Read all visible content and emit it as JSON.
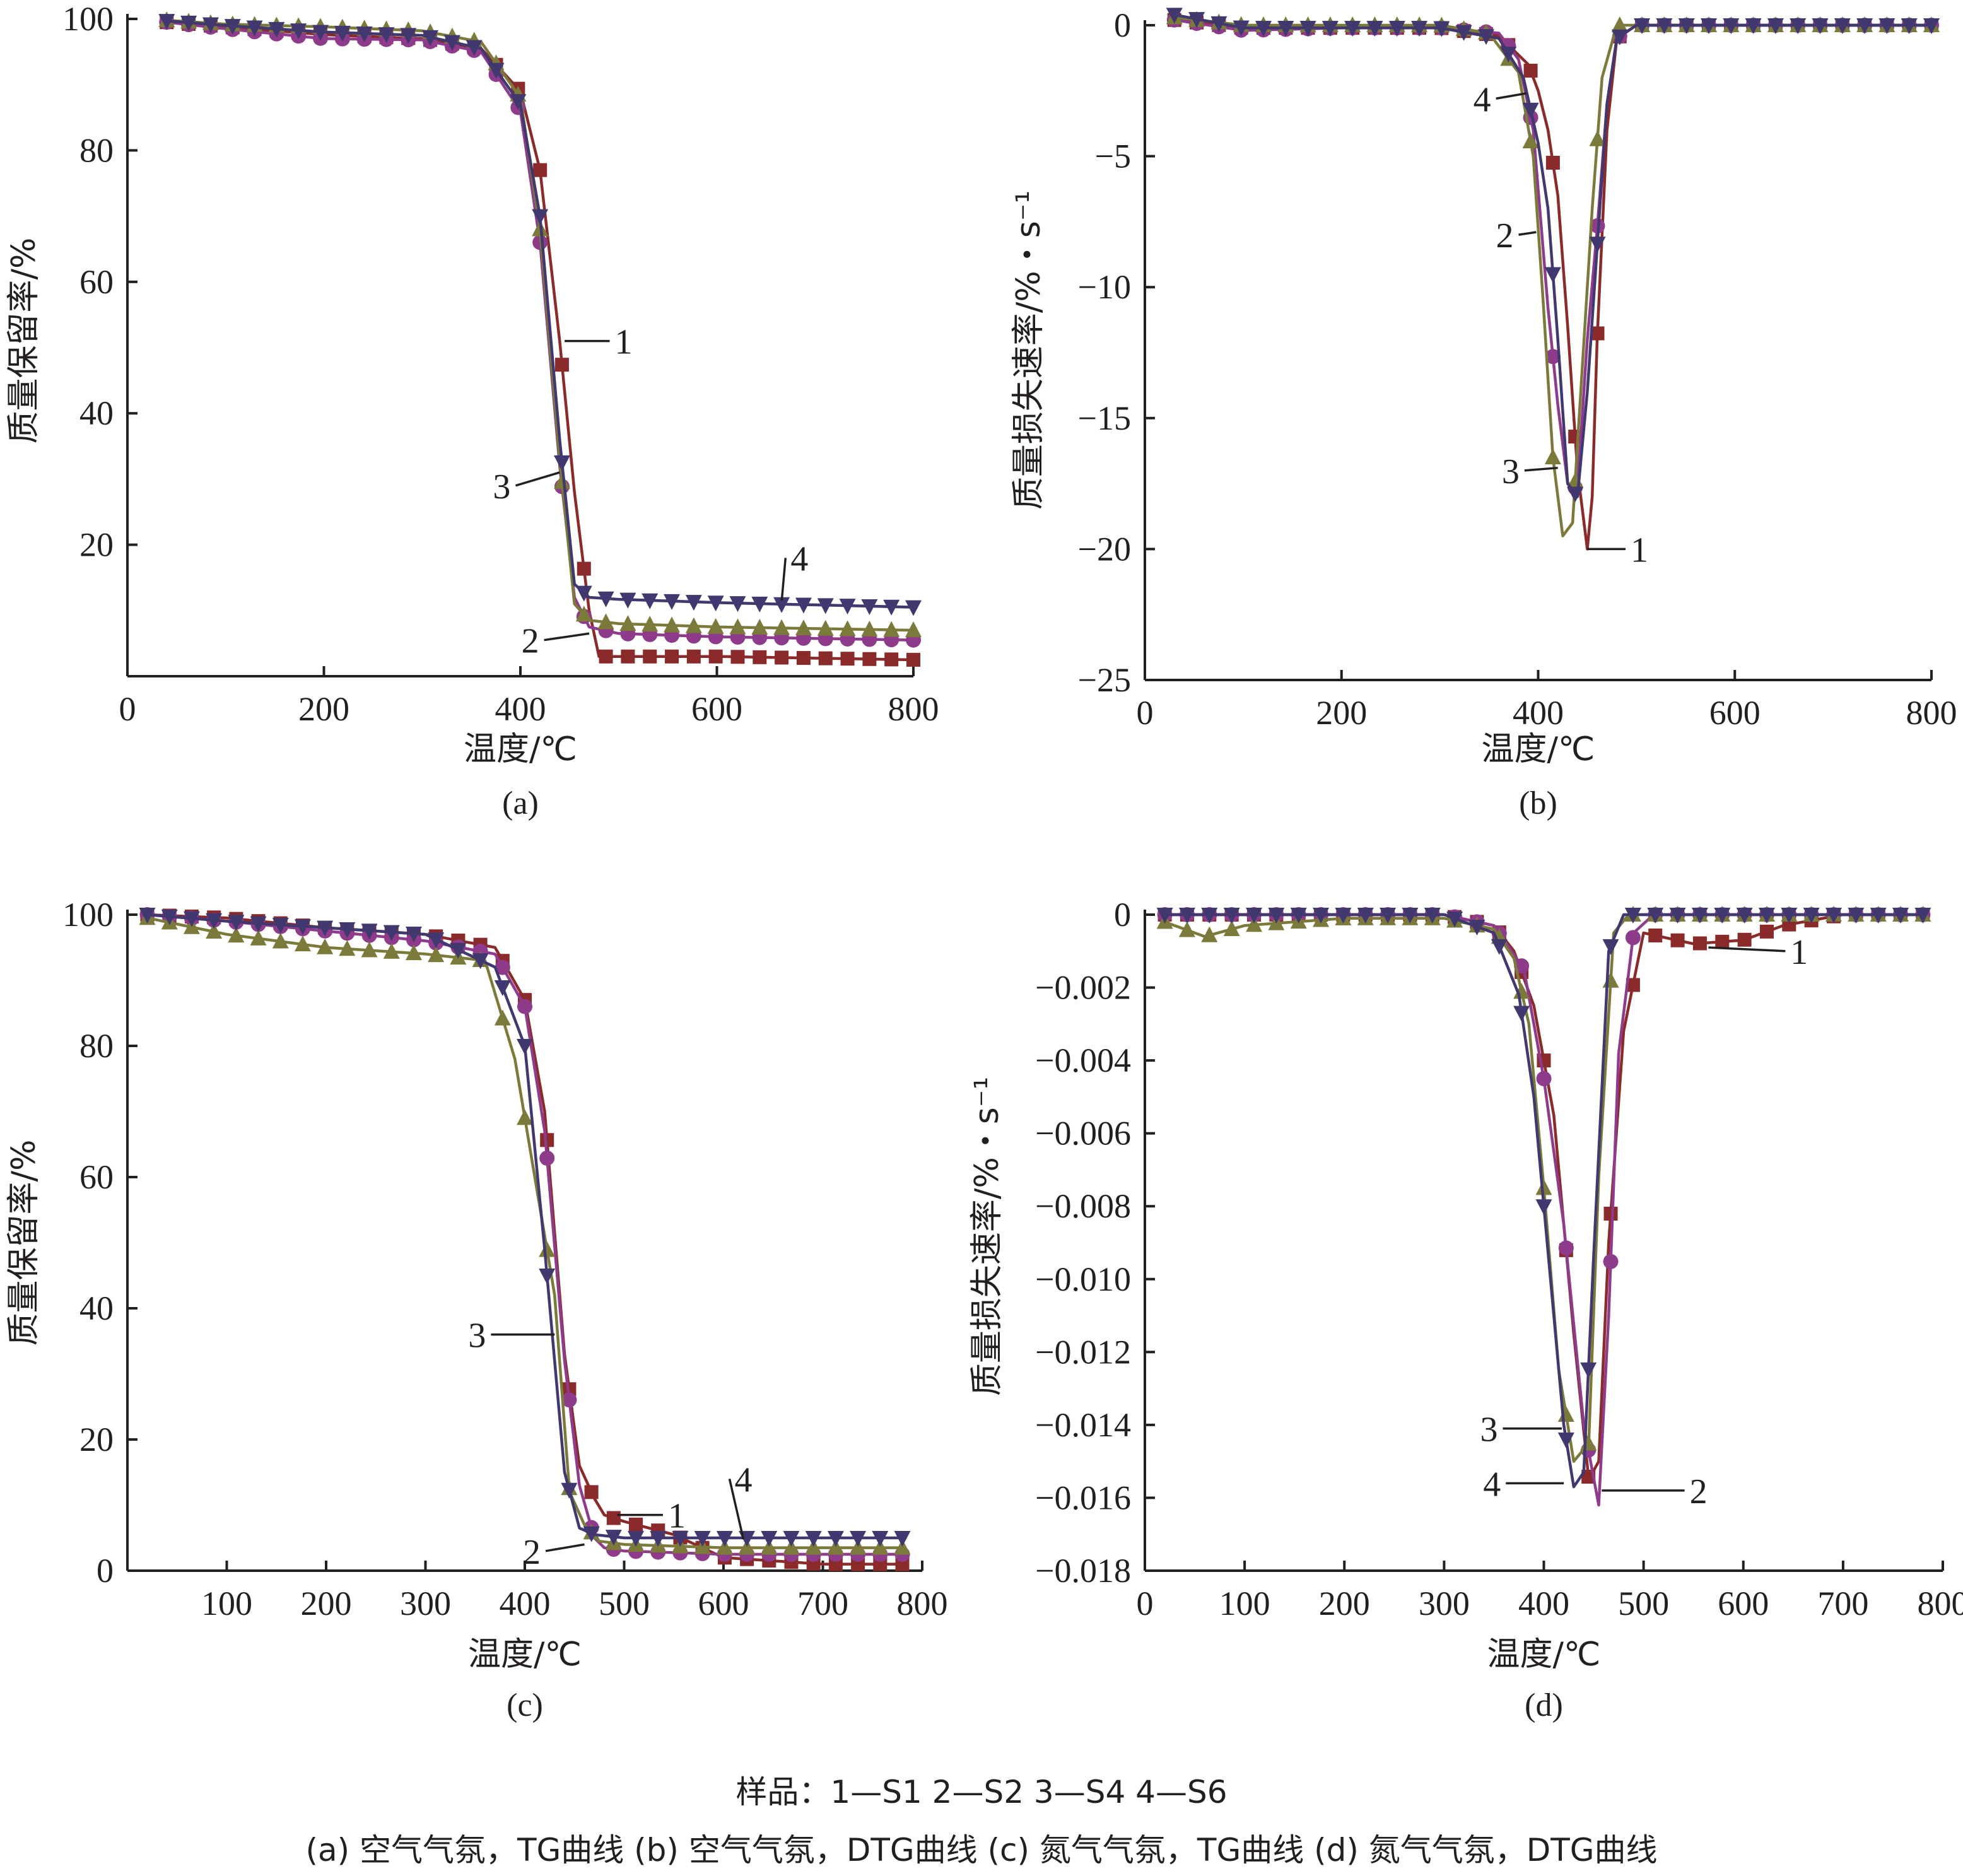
{
  "figure": {
    "legend_line": "样品：1—S1    2—S2    3—S4    4—S6",
    "caption_line": "(a) 空气气氛，TG曲线    (b) 空气气氛，DTG曲线    (c) 氮气气氛，TG曲线    (d) 氮气气氛，DTG曲线"
  },
  "colors": {
    "S1": "#8b2a2a",
    "S2": "#8e3b8c",
    "S4": "#7c7a3a",
    "S6": "#40386e",
    "axis": "#231f20"
  },
  "chart_data": [
    {
      "id": "a",
      "type": "line",
      "caption": "(a)",
      "xlabel": "温度/℃",
      "ylabel": "质量保留率/%",
      "xlim": [
        0,
        800
      ],
      "ylim": [
        0,
        100
      ],
      "xticks": [
        0,
        200,
        400,
        600,
        800
      ],
      "yticks": [
        20,
        40,
        60,
        80,
        100
      ],
      "ytick_labels": [
        "20",
        "40",
        "60",
        "80",
        "100"
      ],
      "series": [
        {
          "name": "1",
          "color": "#8b2a2a",
          "marker": "square",
          "x": [
            40,
            100,
            200,
            300,
            360,
            400,
            420,
            440,
            455,
            470,
            480,
            500,
            600,
            800
          ],
          "y": [
            99.5,
            98.8,
            97.6,
            97,
            95.5,
            89,
            77,
            51,
            28,
            10,
            3,
            3,
            3,
            2.5
          ]
        },
        {
          "name": "2",
          "color": "#8e3b8c",
          "marker": "circle",
          "x": [
            40,
            100,
            200,
            300,
            360,
            400,
            420,
            440,
            455,
            470,
            500,
            600,
            800
          ],
          "y": [
            99.5,
            98.5,
            97,
            96.8,
            95,
            86,
            66,
            32,
            12,
            7.5,
            6.5,
            6,
            5.5
          ]
        },
        {
          "name": "3",
          "color": "#7c7a3a",
          "marker": "triangle-up",
          "x": [
            40,
            100,
            200,
            300,
            360,
            400,
            420,
            440,
            455,
            470,
            500,
            600,
            800
          ],
          "y": [
            99.8,
            99.2,
            98.8,
            98.2,
            96.5,
            88,
            68,
            33,
            11,
            8.5,
            8,
            7.5,
            7
          ]
        },
        {
          "name": "4",
          "color": "#40386e",
          "marker": "triangle-down",
          "x": [
            40,
            100,
            200,
            300,
            360,
            400,
            420,
            440,
            455,
            470,
            500,
            600,
            800
          ],
          "y": [
            99.7,
            99,
            98,
            97.5,
            95.5,
            87,
            70,
            36,
            14,
            12,
            11.7,
            11.2,
            10.5
          ]
        }
      ],
      "labels": [
        {
          "text": "1",
          "series": "1",
          "at": [
            445,
            51
          ],
          "text_at": [
            505,
            51
          ]
        },
        {
          "text": "3",
          "series": "3",
          "at": [
            440,
            31
          ],
          "text_at": [
            381,
            29
          ]
        },
        {
          "text": "2",
          "series": "2",
          "at": [
            470,
            6.5
          ],
          "text_at": [
            410,
            5.5
          ]
        },
        {
          "text": "4",
          "series": "4",
          "at": [
            666,
            11.5
          ],
          "text_at": [
            684,
            18
          ]
        }
      ]
    },
    {
      "id": "b",
      "type": "line",
      "caption": "(b)",
      "xlabel": "温度/℃",
      "ylabel": "质量损失速率/%・s⁻¹",
      "xlim": [
        0,
        800
      ],
      "ylim": [
        -25,
        0
      ],
      "xticks": [
        0,
        200,
        400,
        600,
        800
      ],
      "yticks": [
        -25,
        -20,
        -15,
        -10,
        -5,
        0
      ],
      "ytick_labels": [
        "−25",
        "−20",
        "−15",
        "−10",
        "−5",
        "0"
      ],
      "series": [
        {
          "name": "1",
          "color": "#8b2a2a",
          "marker": "square",
          "x": [
            30,
            100,
            200,
            300,
            360,
            390,
            400,
            410,
            420,
            430,
            440,
            450,
            455,
            460,
            470,
            480,
            500,
            600,
            800
          ],
          "y": [
            0.2,
            -0.1,
            -0.1,
            -0.1,
            -0.4,
            -1.5,
            -2.5,
            -4,
            -6.5,
            -11.5,
            -17,
            -20,
            -18,
            -12,
            -4,
            -0.5,
            0,
            0,
            0
          ]
        },
        {
          "name": "2",
          "color": "#8e3b8c",
          "marker": "circle",
          "x": [
            30,
            100,
            200,
            300,
            360,
            380,
            395,
            410,
            420,
            430,
            440,
            450,
            460,
            470,
            480,
            500,
            600,
            800
          ],
          "y": [
            0.2,
            -0.2,
            -0.1,
            -0.1,
            -0.3,
            -1.3,
            -4,
            -10.8,
            -14.5,
            -17.5,
            -17.7,
            -12,
            -7.8,
            -3,
            -0.5,
            0,
            0,
            0
          ]
        },
        {
          "name": "3",
          "color": "#7c7a3a",
          "marker": "triangle-up",
          "x": [
            30,
            100,
            200,
            300,
            350,
            380,
            395,
            405,
            415,
            425,
            435,
            445,
            455,
            465,
            480,
            500,
            600,
            800
          ],
          "y": [
            0.3,
            0,
            0,
            0,
            -0.3,
            -1.8,
            -5,
            -10.5,
            -16.5,
            -19.5,
            -19,
            -13,
            -7,
            -2,
            0,
            0,
            0,
            0
          ]
        },
        {
          "name": "4",
          "color": "#40386e",
          "marker": "triangle-down",
          "x": [
            30,
            100,
            200,
            300,
            360,
            385,
            400,
            410,
            420,
            430,
            440,
            450,
            460,
            470,
            480,
            500,
            600,
            800
          ],
          "y": [
            0.4,
            -0.1,
            -0.1,
            -0.1,
            -0.5,
            -2,
            -4.5,
            -7,
            -12,
            -17.5,
            -18,
            -14,
            -8.5,
            -3,
            -0.5,
            0,
            0,
            0
          ]
        }
      ],
      "labels": [
        {
          "text": "4",
          "series": "4",
          "at": [
            388,
            -2.6
          ],
          "text_at": [
            343,
            -2.8
          ]
        },
        {
          "text": "2",
          "series": "2",
          "at": [
            398,
            -7.9
          ],
          "text_at": [
            366,
            -8
          ]
        },
        {
          "text": "3",
          "series": "3",
          "at": [
            420,
            -16.9
          ],
          "text_at": [
            372,
            -17
          ]
        },
        {
          "text": "1",
          "series": "1",
          "at": [
            450,
            -20
          ],
          "text_at": [
            503,
            -20
          ]
        }
      ]
    },
    {
      "id": "c",
      "type": "line",
      "caption": "(c)",
      "xlabel": "温度/℃",
      "ylabel": "质量保留率/%",
      "xlim": [
        0,
        800
      ],
      "ylim": [
        0,
        100
      ],
      "xticks": [
        100,
        200,
        300,
        400,
        500,
        600,
        700,
        800
      ],
      "yticks": [
        0,
        20,
        40,
        60,
        80,
        100
      ],
      "ytick_labels": [
        "0",
        "20",
        "40",
        "60",
        "80",
        "100"
      ],
      "series": [
        {
          "name": "1",
          "color": "#8b2a2a",
          "marker": "square",
          "x": [
            20,
            100,
            200,
            300,
            370,
            400,
            420,
            440,
            455,
            470,
            480,
            500,
            550,
            600,
            700,
            780
          ],
          "y": [
            100,
            99.5,
            98,
            97,
            95,
            87,
            70,
            33,
            16,
            11,
            8.5,
            7.5,
            5.5,
            2,
            1,
            1
          ]
        },
        {
          "name": "2",
          "color": "#8e3b8c",
          "marker": "circle",
          "x": [
            20,
            100,
            200,
            300,
            370,
            400,
            420,
            440,
            455,
            470,
            480,
            500,
            600,
            780
          ],
          "y": [
            100,
            99,
            97.5,
            96,
            94,
            86,
            67,
            32,
            13,
            5,
            3.5,
            3,
            2.5,
            2.5
          ]
        },
        {
          "name": "3",
          "color": "#7c7a3a",
          "marker": "triangle-up",
          "x": [
            20,
            100,
            200,
            300,
            360,
            390,
            410,
            430,
            445,
            460,
            475,
            500,
            600,
            780
          ],
          "y": [
            99.5,
            97,
            95,
            94,
            93,
            78,
            60,
            42,
            12,
            7,
            4.5,
            4,
            3.5,
            3.5
          ]
        },
        {
          "name": "4",
          "color": "#40386e",
          "marker": "triangle-down",
          "x": [
            20,
            100,
            200,
            300,
            370,
            400,
            420,
            440,
            455,
            470,
            500,
            600,
            780
          ],
          "y": [
            100,
            99,
            98,
            97,
            92,
            80,
            49,
            15,
            6.5,
            5.5,
            5,
            5,
            5
          ]
        }
      ],
      "labels": [
        {
          "text": "3",
          "series": "3",
          "at": [
            430,
            36
          ],
          "text_at": [
            352,
            36
          ]
        },
        {
          "text": "1",
          "series": "1",
          "at": [
            493,
            8.5
          ],
          "text_at": [
            553,
            8.5
          ]
        },
        {
          "text": "4",
          "series": "4",
          "at": [
            620,
            4.8
          ],
          "text_at": [
            620,
            14
          ]
        },
        {
          "text": "2",
          "series": "2",
          "at": [
            460,
            4
          ],
          "text_at": [
            407,
            3
          ]
        }
      ]
    },
    {
      "id": "d",
      "type": "line",
      "caption": "(d)",
      "xlabel": "温度/℃",
      "ylabel": "质量损失速率/%・s⁻¹",
      "xlim": [
        0,
        800
      ],
      "ylim": [
        -0.018,
        0
      ],
      "xticks": [
        0,
        100,
        200,
        300,
        400,
        500,
        600,
        700,
        800
      ],
      "yticks": [
        -0.018,
        -0.016,
        -0.014,
        -0.012,
        -0.01,
        -0.008,
        -0.006,
        -0.004,
        -0.002,
        0
      ],
      "ytick_labels": [
        "−0.018",
        "−0.016",
        "−0.014",
        "−0.012",
        "−0.010",
        "−0.008",
        "−0.006",
        "−0.004",
        "−0.002",
        "0"
      ],
      "series": [
        {
          "name": "1",
          "color": "#8b2a2a",
          "marker": "square",
          "x": [
            20,
            100,
            200,
            300,
            350,
            370,
            390,
            410,
            430,
            445,
            455,
            465,
            480,
            500,
            550,
            600,
            640,
            700,
            780
          ],
          "y": [
            0,
            0,
            0,
            0,
            -0.0003,
            -0.001,
            -0.0025,
            -0.0055,
            -0.0115,
            -0.0155,
            -0.015,
            -0.009,
            -0.0032,
            -0.0005,
            -0.0008,
            -0.0007,
            -0.0003,
            0,
            0
          ]
        },
        {
          "name": "2",
          "color": "#8e3b8c",
          "marker": "circle",
          "x": [
            20,
            100,
            200,
            300,
            350,
            380,
            400,
            420,
            440,
            455,
            465,
            475,
            490,
            510,
            600,
            780
          ],
          "y": [
            0,
            0,
            0,
            0,
            -0.0003,
            -0.0015,
            -0.0045,
            -0.0085,
            -0.014,
            -0.0162,
            -0.011,
            -0.0038,
            -0.0005,
            0,
            0,
            0
          ]
        },
        {
          "name": "3",
          "color": "#7c7a3a",
          "marker": "triangle-up",
          "x": [
            20,
            60,
            100,
            200,
            300,
            350,
            370,
            385,
            400,
            415,
            430,
            445,
            455,
            470,
            485,
            500,
            600,
            780
          ],
          "y": [
            -0.0002,
            -0.0006,
            -0.0003,
            -0.0001,
            -0.0001,
            -0.0004,
            -0.0012,
            -0.003,
            -0.0075,
            -0.0125,
            -0.015,
            -0.0145,
            -0.0072,
            -0.0005,
            0,
            0,
            0,
            0
          ]
        },
        {
          "name": "4",
          "color": "#40386e",
          "marker": "triangle-down",
          "x": [
            20,
            100,
            200,
            300,
            350,
            375,
            390,
            405,
            420,
            430,
            440,
            450,
            465,
            480,
            500,
            600,
            780
          ],
          "y": [
            0,
            0,
            0,
            0,
            -0.0005,
            -0.0022,
            -0.005,
            -0.0095,
            -0.014,
            -0.0157,
            -0.0153,
            -0.0093,
            -0.001,
            0,
            0,
            0,
            0
          ]
        }
      ],
      "labels": [
        {
          "text": "1",
          "series": "1",
          "at": [
            565,
            -0.0009
          ],
          "text_at": [
            656,
            -0.001
          ]
        },
        {
          "text": "3",
          "series": "3",
          "at": [
            418,
            -0.0141
          ],
          "text_at": [
            345,
            -0.0141
          ]
        },
        {
          "text": "4",
          "series": "4",
          "at": [
            420,
            -0.0156
          ],
          "text_at": [
            348,
            -0.0156
          ]
        },
        {
          "text": "2",
          "series": "2",
          "at": [
            458,
            -0.0158
          ],
          "text_at": [
            555,
            -0.0158
          ]
        }
      ]
    }
  ]
}
